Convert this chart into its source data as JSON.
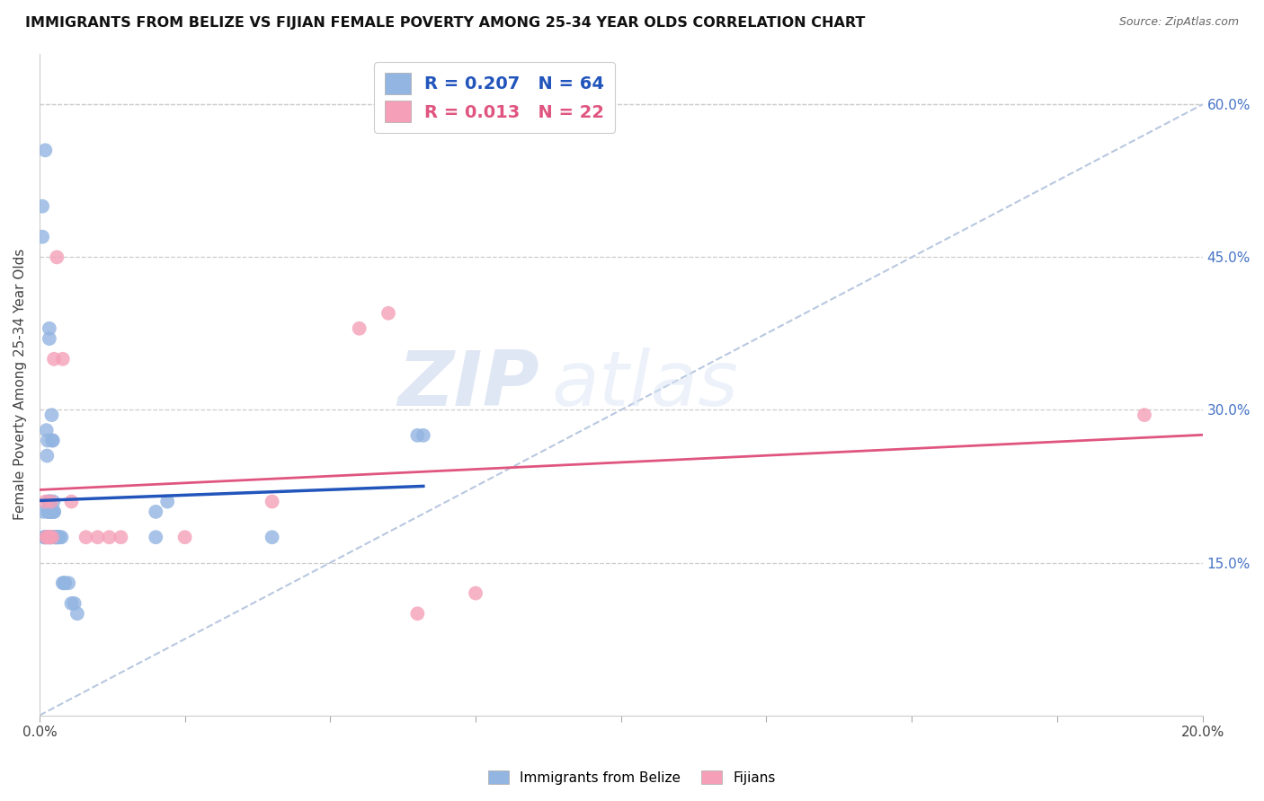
{
  "title": "IMMIGRANTS FROM BELIZE VS FIJIAN FEMALE POVERTY AMONG 25-34 YEAR OLDS CORRELATION CHART",
  "source": "Source: ZipAtlas.com",
  "ylabel": "Female Poverty Among 25-34 Year Olds",
  "xlim": [
    0.0,
    0.2
  ],
  "ylim": [
    0.0,
    0.65
  ],
  "xtick_positions": [
    0.0,
    0.025,
    0.05,
    0.075,
    0.1,
    0.125,
    0.15,
    0.175,
    0.2
  ],
  "xtick_labels": [
    "0.0%",
    "",
    "",
    "",
    "",
    "",
    "",
    "",
    "20.0%"
  ],
  "yticks_right": [
    0.15,
    0.3,
    0.45,
    0.6
  ],
  "ytick_labels_right": [
    "15.0%",
    "30.0%",
    "45.0%",
    "60.0%"
  ],
  "belize_R": 0.207,
  "belize_N": 64,
  "fijian_R": 0.013,
  "fijian_N": 22,
  "belize_color": "#93b5e1",
  "fijian_color": "#f5a0b8",
  "belize_trend_color": "#2255bb",
  "fijian_trend_color": "#e05580",
  "diagonal_color": "#b8c8e0",
  "watermark_zip": "ZIP",
  "watermark_atlas": "atlas",
  "belize_x": [
    0.0005,
    0.0005,
    0.0007,
    0.0008,
    0.001,
    0.001,
    0.001,
    0.001,
    0.001,
    0.0012,
    0.0013,
    0.0014,
    0.0015,
    0.0015,
    0.0015,
    0.0015,
    0.0016,
    0.0016,
    0.0016,
    0.0017,
    0.0017,
    0.0018,
    0.0018,
    0.0018,
    0.0019,
    0.0019,
    0.0019,
    0.002,
    0.002,
    0.002,
    0.002,
    0.002,
    0.002,
    0.0021,
    0.0021,
    0.0022,
    0.0022,
    0.0023,
    0.0024,
    0.0025,
    0.0025,
    0.0026,
    0.0027,
    0.0028,
    0.0028,
    0.003,
    0.003,
    0.0032,
    0.0033,
    0.0035,
    0.0038,
    0.004,
    0.0042,
    0.0044,
    0.005,
    0.0055,
    0.006,
    0.0065,
    0.02,
    0.02,
    0.022,
    0.04,
    0.065,
    0.066
  ],
  "belize_y": [
    0.5,
    0.47,
    0.2,
    0.175,
    0.555,
    0.175,
    0.175,
    0.175,
    0.175,
    0.28,
    0.255,
    0.27,
    0.2,
    0.2,
    0.175,
    0.175,
    0.21,
    0.21,
    0.2,
    0.38,
    0.37,
    0.175,
    0.21,
    0.2,
    0.2,
    0.2,
    0.2,
    0.2,
    0.2,
    0.2,
    0.175,
    0.175,
    0.175,
    0.295,
    0.2,
    0.27,
    0.2,
    0.27,
    0.21,
    0.2,
    0.2,
    0.175,
    0.175,
    0.175,
    0.175,
    0.175,
    0.175,
    0.175,
    0.175,
    0.175,
    0.175,
    0.13,
    0.13,
    0.13,
    0.13,
    0.11,
    0.11,
    0.1,
    0.175,
    0.2,
    0.21,
    0.175,
    0.275,
    0.275
  ],
  "fijian_x": [
    0.001,
    0.0012,
    0.0014,
    0.0016,
    0.0018,
    0.002,
    0.0022,
    0.0025,
    0.003,
    0.004,
    0.0055,
    0.008,
    0.01,
    0.012,
    0.014,
    0.025,
    0.04,
    0.055,
    0.06,
    0.065,
    0.075,
    0.19
  ],
  "fijian_y": [
    0.21,
    0.175,
    0.175,
    0.175,
    0.175,
    0.21,
    0.175,
    0.35,
    0.45,
    0.35,
    0.21,
    0.175,
    0.175,
    0.175,
    0.175,
    0.175,
    0.21,
    0.38,
    0.395,
    0.1,
    0.12,
    0.295
  ]
}
